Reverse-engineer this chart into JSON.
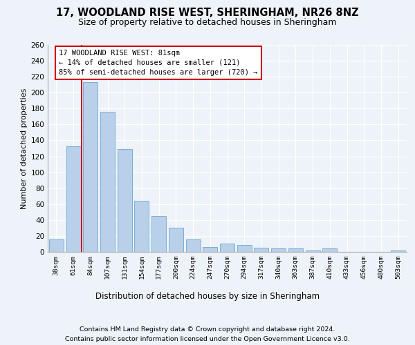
{
  "title1": "17, WOODLAND RISE WEST, SHERINGHAM, NR26 8NZ",
  "title2": "Size of property relative to detached houses in Sheringham",
  "xlabel": "Distribution of detached houses by size in Sheringham",
  "ylabel": "Number of detached properties",
  "categories": [
    "38sqm",
    "61sqm",
    "84sqm",
    "107sqm",
    "131sqm",
    "154sqm",
    "177sqm",
    "200sqm",
    "224sqm",
    "247sqm",
    "270sqm",
    "294sqm",
    "317sqm",
    "340sqm",
    "363sqm",
    "387sqm",
    "410sqm",
    "433sqm",
    "456sqm",
    "480sqm",
    "503sqm"
  ],
  "values": [
    16,
    133,
    213,
    176,
    129,
    64,
    45,
    30,
    16,
    6,
    10,
    9,
    5,
    4,
    4,
    2,
    4,
    0,
    0,
    0,
    2
  ],
  "bar_color": "#b8d0ea",
  "bar_edgecolor": "#7aafd4",
  "vline_index": 1.5,
  "vline_color": "#cc0000",
  "annotation_line1": "17 WOODLAND RISE WEST: 81sqm",
  "annotation_line2": "← 14% of detached houses are smaller (121)",
  "annotation_line3": "85% of semi-detached houses are larger (720) →",
  "ylim_max": 260,
  "yticks": [
    0,
    20,
    40,
    60,
    80,
    100,
    120,
    140,
    160,
    180,
    200,
    220,
    240,
    260
  ],
  "footer1": "Contains HM Land Registry data © Crown copyright and database right 2024.",
  "footer2": "Contains public sector information licensed under the Open Government Licence v3.0.",
  "bg_color": "#eef2f9",
  "grid_color": "#ffffff"
}
